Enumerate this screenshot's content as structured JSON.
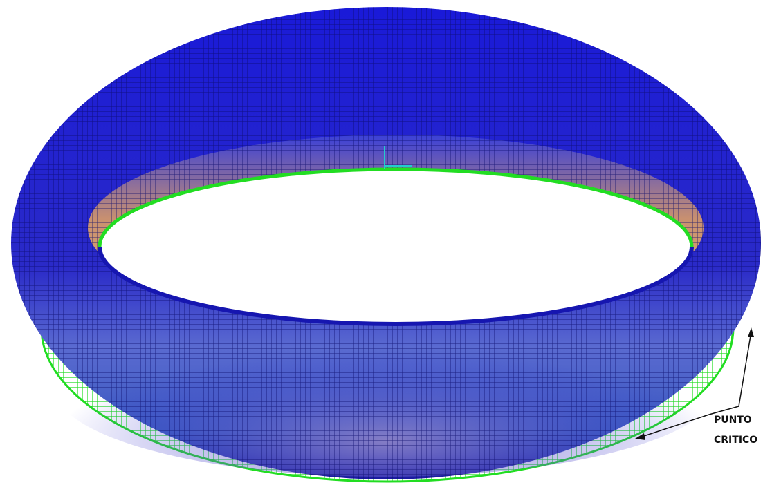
{
  "annotation": {
    "lines": [
      "PUNTO",
      "CRITICO"
    ]
  }
}
